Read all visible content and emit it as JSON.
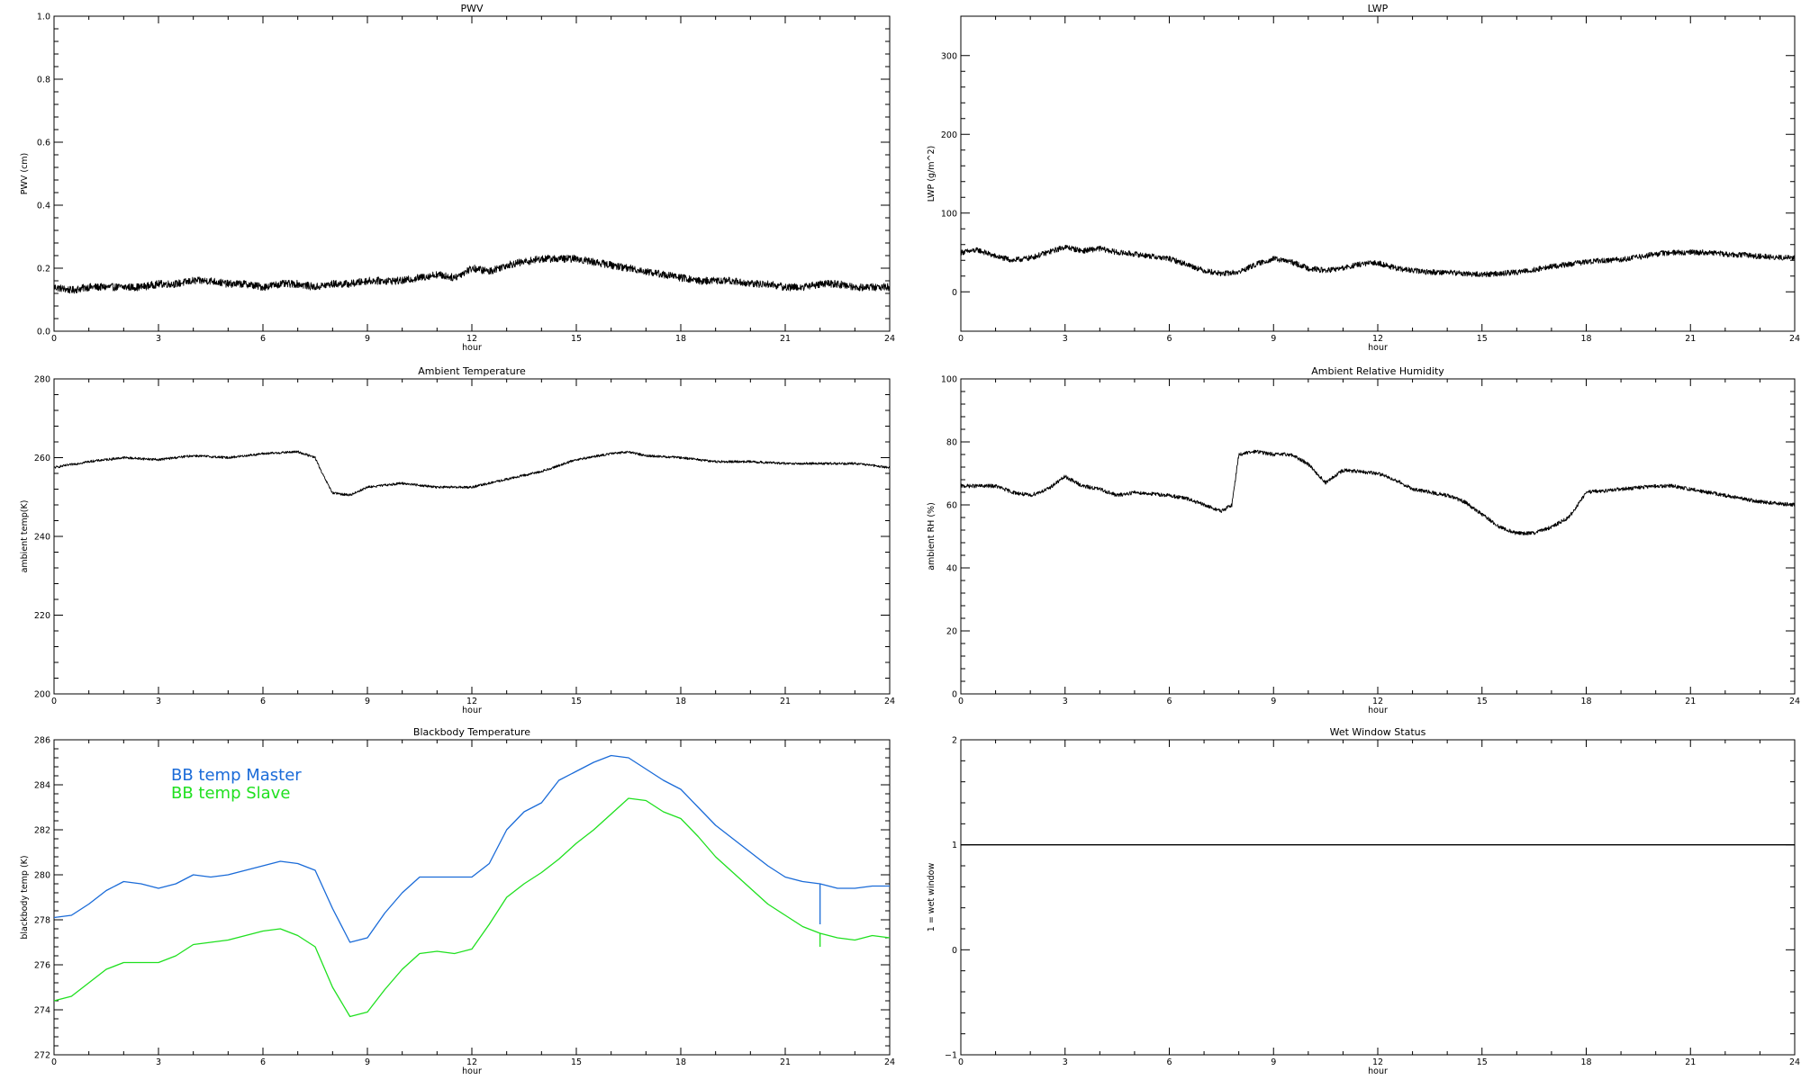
{
  "chart_data": [
    {
      "id": "pwv",
      "type": "line",
      "title": "PWV",
      "xlabel": "hour",
      "ylabel": "PWV (cm)",
      "xlim": [
        0,
        24
      ],
      "ylim": [
        0,
        1
      ],
      "xticks": [
        0,
        3,
        6,
        9,
        12,
        15,
        18,
        21,
        24
      ],
      "xtick_labels": [
        "0",
        "3",
        "6",
        "9",
        "12",
        "15",
        "18",
        "21",
        "24"
      ],
      "yticks": [
        0,
        0.2,
        0.4,
        0.6,
        0.8,
        1.0
      ],
      "ytick_labels": [
        "0.0",
        "0.2",
        "0.4",
        "0.6",
        "0.8",
        "1.0"
      ],
      "series": [
        {
          "color": "#000000",
          "noise": 0.012,
          "x": [
            0,
            0.5,
            1,
            1.5,
            2,
            2.5,
            3,
            3.5,
            4,
            4.5,
            5,
            5.5,
            6,
            6.5,
            7,
            7.5,
            8,
            8.5,
            9,
            9.5,
            10,
            10.5,
            11,
            11.5,
            12,
            12.5,
            13,
            13.5,
            14,
            14.5,
            15,
            15.5,
            16,
            16.5,
            17,
            17.5,
            18,
            18.5,
            19,
            19.5,
            20,
            20.5,
            21,
            21.5,
            22,
            22.5,
            23,
            23.5,
            24
          ],
          "y": [
            0.14,
            0.13,
            0.14,
            0.14,
            0.14,
            0.14,
            0.15,
            0.15,
            0.16,
            0.16,
            0.15,
            0.15,
            0.14,
            0.15,
            0.15,
            0.14,
            0.15,
            0.15,
            0.16,
            0.16,
            0.16,
            0.17,
            0.18,
            0.17,
            0.2,
            0.19,
            0.21,
            0.22,
            0.23,
            0.23,
            0.23,
            0.22,
            0.21,
            0.2,
            0.19,
            0.18,
            0.17,
            0.16,
            0.16,
            0.16,
            0.15,
            0.15,
            0.14,
            0.14,
            0.15,
            0.15,
            0.14,
            0.14,
            0.14
          ]
        }
      ]
    },
    {
      "id": "lwp",
      "type": "line",
      "title": "LWP",
      "xlabel": "hour",
      "ylabel": "LWP (g/m^2)",
      "xlim": [
        0,
        24
      ],
      "ylim": [
        -50,
        350
      ],
      "xticks": [
        0,
        3,
        6,
        9,
        12,
        15,
        18,
        21,
        24
      ],
      "xtick_labels": [
        "0",
        "3",
        "6",
        "9",
        "12",
        "15",
        "18",
        "21",
        "24"
      ],
      "yticks": [
        0,
        100,
        200,
        300
      ],
      "ytick_labels": [
        "0",
        "100",
        "200",
        "300"
      ],
      "series": [
        {
          "color": "#000000",
          "noise": 3.5,
          "x": [
            0,
            0.5,
            1,
            1.5,
            2,
            2.5,
            3,
            3.5,
            4,
            4.5,
            5,
            5.5,
            6,
            6.5,
            7,
            7.5,
            8,
            8.5,
            9,
            9.5,
            10,
            10.5,
            11,
            11.5,
            12,
            12.5,
            13,
            13.5,
            14,
            14.5,
            15,
            15.5,
            16,
            16.5,
            17,
            17.5,
            18,
            18.5,
            19,
            19.5,
            20,
            20.5,
            21,
            21.5,
            22,
            22.5,
            23,
            23.5,
            24
          ],
          "y": [
            50,
            53,
            45,
            40,
            43,
            50,
            57,
            52,
            55,
            50,
            48,
            45,
            42,
            35,
            27,
            23,
            25,
            35,
            42,
            38,
            30,
            27,
            30,
            35,
            37,
            30,
            27,
            25,
            25,
            23,
            22,
            23,
            25,
            28,
            32,
            35,
            38,
            40,
            41,
            44,
            48,
            50,
            50,
            50,
            48,
            47,
            45,
            44,
            43
          ]
        }
      ]
    },
    {
      "id": "ambient_temp",
      "type": "line",
      "title": "Ambient Temperature",
      "xlabel": "hour",
      "ylabel": "ambient temp(K)",
      "xlim": [
        0,
        24
      ],
      "ylim": [
        200,
        280
      ],
      "xticks": [
        0,
        3,
        6,
        9,
        12,
        15,
        18,
        21,
        24
      ],
      "xtick_labels": [
        "0",
        "3",
        "6",
        "9",
        "12",
        "15",
        "18",
        "21",
        "24"
      ],
      "yticks": [
        200,
        220,
        240,
        260,
        280
      ],
      "ytick_labels": [
        "200",
        "220",
        "240",
        "260",
        "280"
      ],
      "series": [
        {
          "color": "#000000",
          "noise": 0.3,
          "x": [
            0,
            1,
            2,
            3,
            4,
            5,
            6,
            7,
            7.5,
            7.7,
            8,
            8.5,
            9,
            10,
            11,
            12,
            13,
            14,
            15,
            16,
            16.5,
            17,
            18,
            19,
            20,
            21,
            22,
            23,
            24
          ],
          "y": [
            257.5,
            259,
            260,
            259.5,
            260.5,
            260,
            261,
            261.5,
            260,
            256,
            251,
            250.5,
            252.5,
            253.5,
            252.5,
            252.5,
            254.5,
            256.5,
            259.5,
            261,
            261.5,
            260.5,
            260,
            259,
            259,
            258.5,
            258.5,
            258.5,
            257.5
          ]
        }
      ]
    },
    {
      "id": "ambient_rh",
      "type": "line",
      "title": "Ambient Relative Humidity",
      "xlabel": "hour",
      "ylabel": "ambient RH (%)",
      "xlim": [
        0,
        24
      ],
      "ylim": [
        0,
        100
      ],
      "xticks": [
        0,
        3,
        6,
        9,
        12,
        15,
        18,
        21,
        24
      ],
      "xtick_labels": [
        "0",
        "3",
        "6",
        "9",
        "12",
        "15",
        "18",
        "21",
        "24"
      ],
      "yticks": [
        0,
        20,
        40,
        60,
        80,
        100
      ],
      "ytick_labels": [
        "0",
        "20",
        "40",
        "60",
        "80",
        "100"
      ],
      "series": [
        {
          "color": "#000000",
          "noise": 0.6,
          "x": [
            0,
            1,
            1.5,
            2,
            2.5,
            3,
            3.5,
            4,
            4.5,
            5,
            6,
            6.5,
            7,
            7.5,
            7.8,
            8,
            8.5,
            9,
            9.5,
            10,
            10.5,
            11,
            12,
            12.5,
            13,
            14,
            14.5,
            15,
            15.5,
            16,
            16.5,
            17,
            17.5,
            18,
            19,
            20,
            20.5,
            21,
            22,
            23,
            24
          ],
          "y": [
            66,
            66,
            64,
            63,
            65,
            69,
            66,
            65,
            63,
            64,
            63,
            62,
            60,
            58,
            60,
            76,
            77,
            76,
            76,
            73,
            67,
            71,
            70,
            68,
            65,
            63,
            61,
            57,
            53,
            51,
            51,
            53,
            56,
            64,
            65,
            66,
            66,
            65,
            63,
            61,
            60
          ]
        }
      ]
    },
    {
      "id": "bb_temp",
      "type": "line",
      "title": "Blackbody Temperature",
      "xlabel": "hour",
      "ylabel": "blackbody temp (K)",
      "xlim": [
        0,
        24
      ],
      "ylim": [
        272,
        286
      ],
      "xticks": [
        0,
        3,
        6,
        9,
        12,
        15,
        18,
        21,
        24
      ],
      "xtick_labels": [
        "0",
        "3",
        "6",
        "9",
        "12",
        "15",
        "18",
        "21",
        "24"
      ],
      "yticks": [
        272,
        274,
        276,
        278,
        280,
        282,
        284,
        286
      ],
      "ytick_labels": [
        "272",
        "274",
        "276",
        "278",
        "280",
        "282",
        "284",
        "286"
      ],
      "series": [
        {
          "name": "BB temp Master",
          "color": "#1a6bd8",
          "noise": 0,
          "x": [
            0,
            0.5,
            1,
            1.5,
            2,
            2.5,
            3,
            3.5,
            4,
            4.5,
            5,
            5.5,
            6,
            6.5,
            7,
            7.5,
            8,
            8.5,
            9,
            9.5,
            10,
            10.5,
            11,
            11.5,
            12,
            12.5,
            13,
            13.5,
            14,
            14.5,
            15,
            15.5,
            16,
            16.5,
            17,
            17.5,
            18,
            18.5,
            19,
            19.5,
            20,
            20.5,
            21,
            21.5,
            22,
            22.5,
            23,
            23.5,
            24
          ],
          "y": [
            278.1,
            278.2,
            278.7,
            279.3,
            279.7,
            279.6,
            279.4,
            279.6,
            280,
            279.9,
            280,
            280.2,
            280.4,
            280.6,
            280.5,
            280.2,
            278.5,
            277,
            277.2,
            278.3,
            279.2,
            279.9,
            279.9,
            279.9,
            279.9,
            280.5,
            282,
            282.8,
            283.2,
            284.2,
            284.6,
            285,
            285.3,
            285.2,
            284.7,
            284.2,
            283.8,
            283,
            282.2,
            281.6,
            281,
            280.4,
            279.9,
            279.7,
            279.6,
            279.4,
            279.4,
            279.5,
            279.5
          ]
        },
        {
          "name": "BB temp Slave",
          "color": "#1fe01f",
          "noise": 0,
          "x": [
            0,
            0.5,
            1,
            1.5,
            2,
            2.5,
            3,
            3.5,
            4,
            4.5,
            5,
            5.5,
            6,
            6.5,
            7,
            7.5,
            8,
            8.5,
            9,
            9.5,
            10,
            10.5,
            11,
            11.5,
            12,
            12.5,
            13,
            13.5,
            14,
            14.5,
            15,
            15.5,
            16,
            16.5,
            17,
            17.5,
            18,
            18.5,
            19,
            19.5,
            20,
            20.5,
            21,
            21.5,
            22,
            22.5,
            23,
            23.5,
            24
          ],
          "y": [
            274.4,
            274.6,
            275.2,
            275.8,
            276.1,
            276.1,
            276.1,
            276.4,
            276.9,
            277,
            277.1,
            277.3,
            277.5,
            277.6,
            277.3,
            276.8,
            275,
            273.7,
            273.9,
            274.9,
            275.8,
            276.5,
            276.6,
            276.5,
            276.7,
            277.8,
            279,
            279.6,
            280.1,
            280.7,
            281.4,
            282,
            282.7,
            283.4,
            283.3,
            282.8,
            282.5,
            281.7,
            280.8,
            280.1,
            279.4,
            278.7,
            278.2,
            277.7,
            277.4,
            277.2,
            277.1,
            277.3,
            277.2
          ]
        }
      ],
      "spikes": [
        {
          "x": 22,
          "from": 279.6,
          "to": 277.8,
          "color": "#1a6bd8"
        },
        {
          "x": 22,
          "from": 277.4,
          "to": 276.8,
          "color": "#1fe01f"
        }
      ],
      "legend": [
        "BB temp Master",
        "BB temp Slave"
      ],
      "legend_placement": "top-left"
    },
    {
      "id": "wet_window",
      "type": "line",
      "title": "Wet Window Status",
      "xlabel": "hour",
      "ylabel": "1 = wet window",
      "xlim": [
        0,
        24
      ],
      "ylim": [
        -1,
        2
      ],
      "xticks": [
        0,
        3,
        6,
        9,
        12,
        15,
        18,
        21,
        24
      ],
      "xtick_labels": [
        "0",
        "3",
        "6",
        "9",
        "12",
        "15",
        "18",
        "21",
        "24"
      ],
      "yticks": [
        -1,
        0,
        1,
        2
      ],
      "ytick_labels": [
        "−1",
        "0",
        "1",
        "2"
      ],
      "series": [
        {
          "color": "#000000",
          "noise": 0,
          "x": [
            0,
            24
          ],
          "y": [
            1,
            1
          ]
        }
      ]
    }
  ]
}
